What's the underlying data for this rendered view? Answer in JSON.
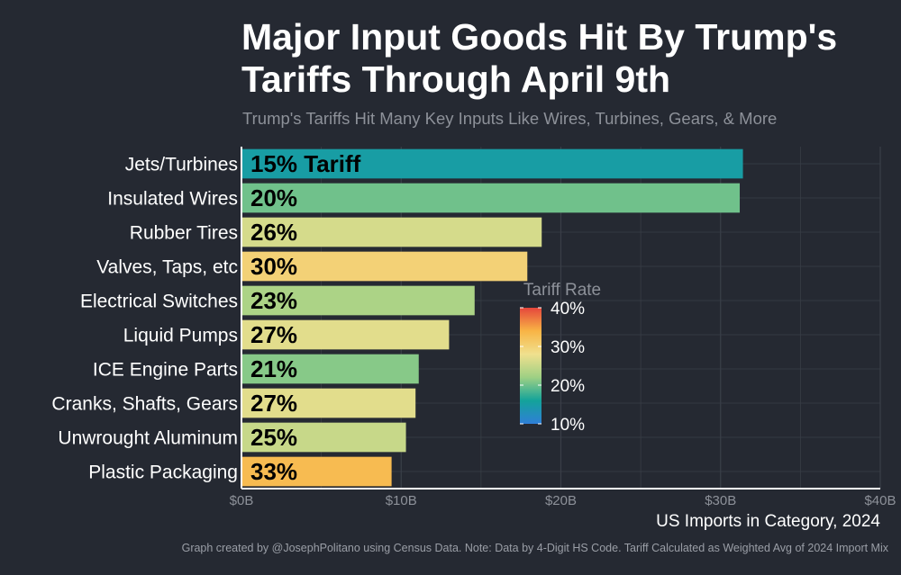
{
  "title": "Major Input Goods Hit By Trump's Tariffs Through April 9th",
  "subtitle": "Trump's Tariffs Hit Many Key Inputs Like Wires, Turbines, Gears, & More",
  "caption": "Graph created by @JosephPolitano using Census Data. Note: Data by 4-Digit HS Code. Tariff Calculated as Weighted Avg of 2024 Import Mix",
  "chart_data": {
    "type": "bar",
    "orientation": "horizontal",
    "categories": [
      "Jets/Turbines",
      "Insulated Wires",
      "Rubber Tires",
      "Valves, Taps, etc",
      "Electrical Switches",
      "Liquid Pumps",
      "ICE Engine Parts",
      "Cranks, Shafts, Gears",
      "Unwrought Aluminum",
      "Plastic Packaging"
    ],
    "values": [
      31.4,
      31.2,
      18.8,
      17.9,
      14.6,
      13.0,
      11.1,
      10.9,
      10.3,
      9.4
    ],
    "tariff_rates": [
      15,
      20,
      26,
      30,
      23,
      27,
      21,
      27,
      25,
      33
    ],
    "bar_labels": [
      "15% Tariff",
      "20%",
      "26%",
      "30%",
      "23%",
      "27%",
      "21%",
      "27%",
      "25%",
      "33%"
    ],
    "xlabel": "US Imports in Category, 2024",
    "xlim": [
      0,
      40
    ],
    "x_ticks": [
      0,
      10,
      20,
      30,
      40
    ],
    "x_tick_labels": [
      "$0B",
      "$10B",
      "$20B",
      "$30B",
      "$40B"
    ],
    "grid": true,
    "legend": {
      "title": "Tariff Rate",
      "type": "colorbar",
      "placement": "inside-right",
      "range": [
        10,
        40
      ],
      "ticks": [
        10,
        20,
        30,
        40
      ],
      "tick_labels": [
        "10%",
        "20%",
        "30%",
        "40%"
      ],
      "colors": [
        "#2f7fd8",
        "#13a39a",
        "#9ed084",
        "#f0e08e",
        "#f8b445",
        "#e5463c"
      ]
    },
    "colors": {
      "background": "#252932",
      "grid": "#3a3f48",
      "axis": "#ffffff"
    }
  }
}
